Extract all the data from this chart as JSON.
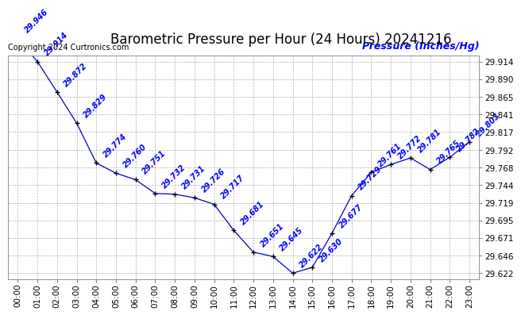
{
  "title": "Barometric Pressure per Hour (24 Hours) 20241216",
  "ylabel": "Pressure (Inches/Hg)",
  "copyright": "Copyright 2024 Curtronics.com",
  "hours": [
    "00:00",
    "01:00",
    "02:00",
    "03:00",
    "04:00",
    "05:00",
    "06:00",
    "07:00",
    "08:00",
    "09:00",
    "10:00",
    "11:00",
    "12:00",
    "13:00",
    "14:00",
    "15:00",
    "16:00",
    "17:00",
    "18:00",
    "19:00",
    "20:00",
    "21:00",
    "22:00",
    "23:00"
  ],
  "values": [
    29.946,
    29.914,
    29.872,
    29.829,
    29.774,
    29.76,
    29.751,
    29.732,
    29.731,
    29.726,
    29.717,
    29.681,
    29.651,
    29.645,
    29.622,
    29.63,
    29.677,
    29.729,
    29.761,
    29.772,
    29.781,
    29.765,
    29.782,
    29.803
  ],
  "yticks": [
    29.622,
    29.646,
    29.671,
    29.695,
    29.719,
    29.744,
    29.768,
    29.792,
    29.817,
    29.841,
    29.865,
    29.89,
    29.914
  ],
  "ylim_min": 29.614,
  "ylim_max": 29.922,
  "line_color": "#0000cc",
  "marker_color": "#000000",
  "label_color": "#0000ff",
  "title_color": "#000000",
  "copyright_color": "#000000",
  "ylabel_color": "#0000ff",
  "bg_color": "#ffffff",
  "grid_color": "#b0b0b0",
  "title_fontsize": 12,
  "label_fontsize": 7,
  "ylabel_fontsize": 9,
  "copyright_fontsize": 7,
  "tick_fontsize": 7.5
}
